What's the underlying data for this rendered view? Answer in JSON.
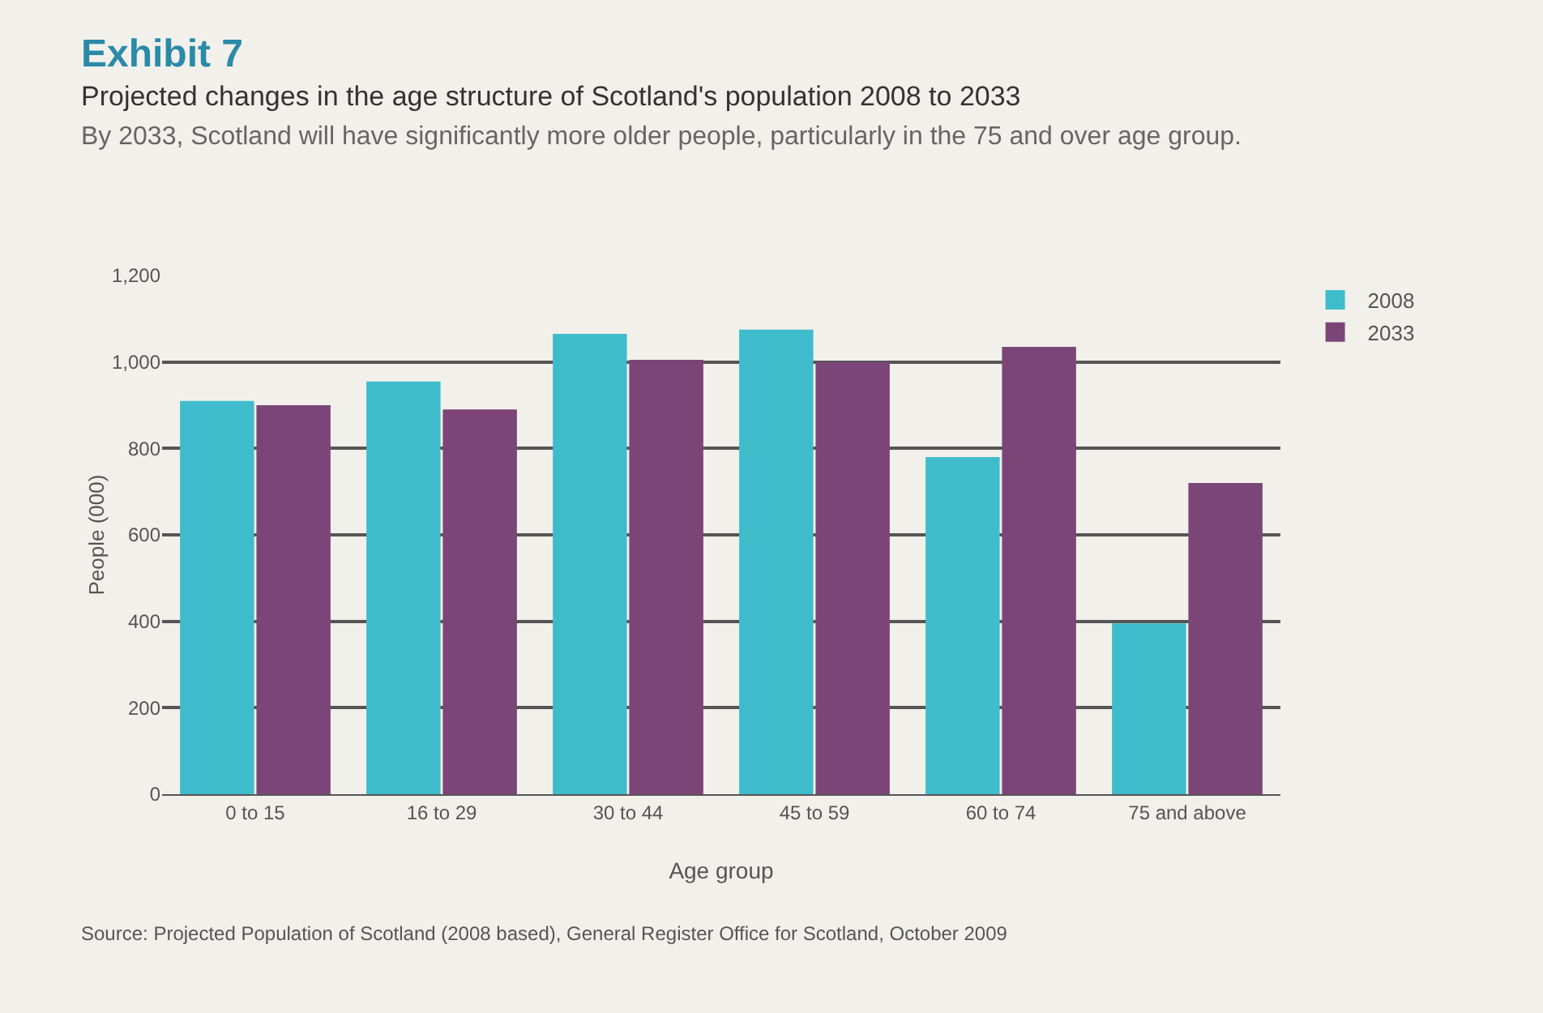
{
  "chart_data": {
    "type": "bar",
    "title": "Exhibit 7",
    "subtitle": "Projected changes in the age structure of Scotland's population 2008 to 2033",
    "annotations": [
      "By 2033, Scotland will have significantly more older people, particularly in the 75 and over age group.",
      "Source: Projected Population of Scotland (2008 based), General Register Office for Scotland, October 2009"
    ],
    "xlabel": "Age group",
    "ylabel": "People (000)",
    "categories": [
      "0 to 15",
      "16 to 29",
      "30 to 44",
      "45 to 59",
      "60 to 74",
      "75 and above"
    ],
    "series": [
      {
        "name": "2008",
        "color": "#3fbccb",
        "values": [
          910,
          955,
          1065,
          1075,
          780,
          395
        ]
      },
      {
        "name": "2033",
        "color": "#7b4677",
        "values": [
          900,
          890,
          1005,
          1000,
          1035,
          720
        ]
      }
    ],
    "ylim": [
      0,
      1200
    ],
    "yticks": [
      0,
      {
        "value": 200,
        "label": "200"
      },
      {
        "value": 400,
        "label": "400"
      },
      {
        "value": 600,
        "label": "600"
      },
      {
        "value": 800,
        "label": "800"
      },
      {
        "value": 1000,
        "label": "1,000"
      },
      {
        "value": 1200,
        "label": "1,200"
      }
    ],
    "grid": "y",
    "legend": "top right"
  }
}
